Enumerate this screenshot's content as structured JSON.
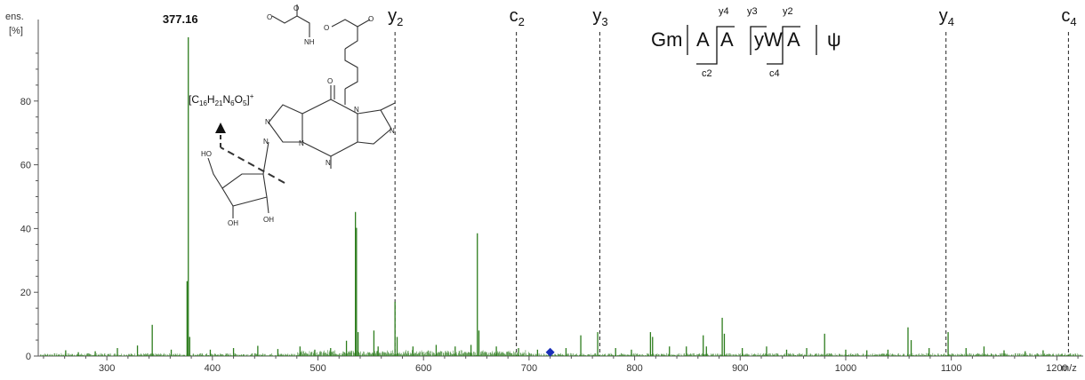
{
  "chart_data": {
    "type": "line",
    "ylabel_lines": [
      "ens.",
      "[%]"
    ],
    "xlabel": "m/z",
    "xlim": [
      235,
      1225
    ],
    "ylim": [
      0,
      100
    ],
    "x_ticks": [
      300,
      400,
      500,
      600,
      700,
      800,
      900,
      1000,
      1100,
      1200
    ],
    "y_ticks": [
      0,
      20,
      40,
      60,
      80
    ],
    "series_color": "#2d7d1d",
    "peaks": [
      {
        "x": 261,
        "y": 1.8
      },
      {
        "x": 273,
        "y": 1.2
      },
      {
        "x": 289,
        "y": 1.5
      },
      {
        "x": 310,
        "y": 2.5
      },
      {
        "x": 329,
        "y": 3.3
      },
      {
        "x": 343,
        "y": 9.8
      },
      {
        "x": 361,
        "y": 2.0
      },
      {
        "x": 376,
        "y": 23.5
      },
      {
        "x": 377.16,
        "y": 100
      },
      {
        "x": 378.5,
        "y": 6.0
      },
      {
        "x": 398,
        "y": 2.0
      },
      {
        "x": 420,
        "y": 2.5
      },
      {
        "x": 443,
        "y": 3.2
      },
      {
        "x": 462,
        "y": 2.2
      },
      {
        "x": 483,
        "y": 3.0
      },
      {
        "x": 497,
        "y": 2.0
      },
      {
        "x": 512,
        "y": 2.5
      },
      {
        "x": 527,
        "y": 4.8
      },
      {
        "x": 535.5,
        "y": 45.2
      },
      {
        "x": 536.5,
        "y": 40.2
      },
      {
        "x": 538,
        "y": 7.5
      },
      {
        "x": 553,
        "y": 8.0
      },
      {
        "x": 557,
        "y": 3.0
      },
      {
        "x": 573,
        "y": 17.0
      },
      {
        "x": 575,
        "y": 6.0
      },
      {
        "x": 590,
        "y": 3.0
      },
      {
        "x": 612,
        "y": 3.5
      },
      {
        "x": 630,
        "y": 3.0
      },
      {
        "x": 645,
        "y": 3.5
      },
      {
        "x": 651,
        "y": 38.5
      },
      {
        "x": 652.5,
        "y": 8.0
      },
      {
        "x": 669,
        "y": 3.0
      },
      {
        "x": 690,
        "y": 2.5
      },
      {
        "x": 708,
        "y": 2.0
      },
      {
        "x": 735,
        "y": 2.5
      },
      {
        "x": 749,
        "y": 6.5
      },
      {
        "x": 765,
        "y": 7.5
      },
      {
        "x": 782,
        "y": 2.5
      },
      {
        "x": 797,
        "y": 2.0
      },
      {
        "x": 815,
        "y": 7.5
      },
      {
        "x": 817,
        "y": 6.0
      },
      {
        "x": 833,
        "y": 3.0
      },
      {
        "x": 849,
        "y": 3.0
      },
      {
        "x": 865,
        "y": 6.5
      },
      {
        "x": 868,
        "y": 3.0
      },
      {
        "x": 883,
        "y": 12.0
      },
      {
        "x": 885,
        "y": 7.0
      },
      {
        "x": 902,
        "y": 2.5
      },
      {
        "x": 925,
        "y": 3.0
      },
      {
        "x": 944,
        "y": 2.0
      },
      {
        "x": 963,
        "y": 2.5
      },
      {
        "x": 980,
        "y": 7.0
      },
      {
        "x": 1000,
        "y": 2.0
      },
      {
        "x": 1020,
        "y": 1.8
      },
      {
        "x": 1040,
        "y": 2.0
      },
      {
        "x": 1059,
        "y": 9.0
      },
      {
        "x": 1062,
        "y": 5.0
      },
      {
        "x": 1079,
        "y": 2.5
      },
      {
        "x": 1097,
        "y": 7.5
      },
      {
        "x": 1114,
        "y": 2.5
      },
      {
        "x": 1131,
        "y": 3.0
      },
      {
        "x": 1150,
        "y": 1.8
      },
      {
        "x": 1170,
        "y": 1.5
      },
      {
        "x": 1187,
        "y": 1.8
      }
    ],
    "peak_label": {
      "x": 377.16,
      "y": 100,
      "text": "377.16"
    },
    "fragment_lines": [
      {
        "x": 573,
        "label": "y",
        "sub": "2"
      },
      {
        "x": 688,
        "label": "c",
        "sub": "2"
      },
      {
        "x": 767,
        "label": "y",
        "sub": "3"
      },
      {
        "x": 1095,
        "label": "y",
        "sub": "4"
      },
      {
        "x": 1211,
        "label": "c",
        "sub": "4"
      }
    ],
    "precursor_marker": {
      "x": 720,
      "y": 1.2,
      "color": "#1a2fb8"
    },
    "annotation_formula": {
      "text": "[C",
      "s1": "16",
      "t2": "H",
      "s2": "21",
      "t3": "N",
      "s3": "6",
      "t4": "O",
      "s4": "5",
      "t5": "]",
      "sup": "+"
    },
    "sequence": {
      "residues": [
        "Gm",
        "A",
        "A",
        "yW",
        "A",
        "ψ"
      ],
      "above_labels": [
        "y4",
        "y3",
        "y2"
      ],
      "below_labels": [
        "c2",
        "c4"
      ]
    },
    "structure_labels": [
      "O",
      "NH",
      "O",
      "O",
      "O",
      "N",
      "N",
      "N",
      "N",
      "N",
      "N",
      "O",
      "HO",
      "OH",
      "OH"
    ]
  }
}
